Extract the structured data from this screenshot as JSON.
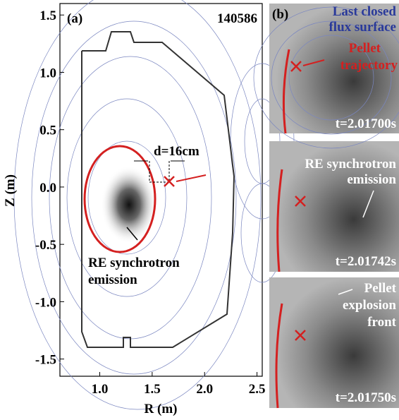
{
  "panel_a": {
    "label": "(a)",
    "shot": "140586",
    "xlabel": "R (m)",
    "ylabel": "Z (m)",
    "xlim": [
      0.62,
      2.55
    ],
    "ylim": [
      -1.65,
      1.6
    ],
    "xticks": [
      {
        "value": 1,
        "label": "1.0"
      },
      1.5,
      {
        "value": 2,
        "label": "2.0"
      },
      2.5
    ],
    "yticks": [
      1.5,
      {
        "value": 1,
        "label": "1.0"
      },
      0.5,
      {
        "value": 0,
        "label": "0.0"
      },
      -0.5,
      {
        "value": -1,
        "label": "-1.0"
      },
      -1.5
    ],
    "distance_label": "d=16cm",
    "emission_label": [
      "RE synchrotron",
      "emission"
    ]
  },
  "panel_b": {
    "label": "(b)",
    "frames": [
      {
        "time": "t=2.01700s",
        "labels": [
          "Last closed",
          "flux surface",
          "Pellet",
          "trajectory"
        ]
      },
      {
        "time": "t=2.01742s",
        "labels": [
          "RE synchrotron",
          "emission"
        ]
      },
      {
        "time": "t=2.01750s",
        "labels": [
          "Pellet",
          "explosion",
          "front"
        ]
      }
    ]
  }
}
